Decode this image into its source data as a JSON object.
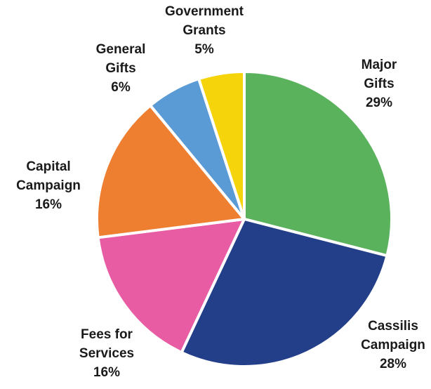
{
  "chart_data": {
    "type": "pie",
    "title": "",
    "slices": [
      {
        "name": "Major Gifts",
        "label_lines": [
          "Major",
          "Gifts"
        ],
        "value": 29,
        "value_label": "29%",
        "color": "#5BB25D"
      },
      {
        "name": "Cassilis Campaign",
        "label_lines": [
          "Cassilis",
          "Campaign"
        ],
        "value": 28,
        "value_label": "28%",
        "color": "#243F8A"
      },
      {
        "name": "Fees for Services",
        "label_lines": [
          "Fees for",
          "Services"
        ],
        "value": 16,
        "value_label": "16%",
        "color": "#E85CA4"
      },
      {
        "name": "Capital Campaign",
        "label_lines": [
          "Capital",
          "Campaign"
        ],
        "value": 16,
        "value_label": "16%",
        "color": "#EE7F31"
      },
      {
        "name": "General Gifts",
        "label_lines": [
          "General",
          "Gifts"
        ],
        "value": 6,
        "value_label": "6%",
        "color": "#5B9BD5"
      },
      {
        "name": "Government Grants",
        "label_lines": [
          "Government",
          "Grants"
        ],
        "value": 5,
        "value_label": "5%",
        "color": "#F6D40B"
      }
    ],
    "start_angle_deg": 90,
    "direction": "clockwise",
    "legend": "none"
  }
}
